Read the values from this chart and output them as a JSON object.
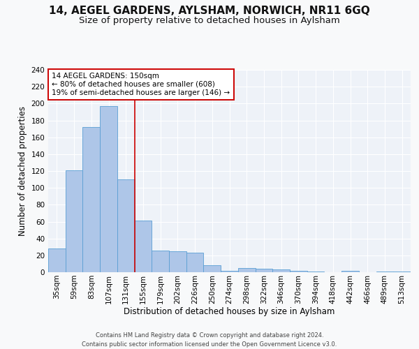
{
  "title": "14, AEGEL GARDENS, AYLSHAM, NORWICH, NR11 6GQ",
  "subtitle": "Size of property relative to detached houses in Aylsham",
  "xlabel": "Distribution of detached houses by size in Aylsham",
  "ylabel": "Number of detached properties",
  "bin_labels": [
    "35sqm",
    "59sqm",
    "83sqm",
    "107sqm",
    "131sqm",
    "155sqm",
    "179sqm",
    "202sqm",
    "226sqm",
    "250sqm",
    "274sqm",
    "298sqm",
    "322sqm",
    "346sqm",
    "370sqm",
    "394sqm",
    "418sqm",
    "442sqm",
    "466sqm",
    "489sqm",
    "513sqm"
  ],
  "bar_heights": [
    28,
    121,
    172,
    197,
    110,
    61,
    26,
    25,
    23,
    8,
    2,
    5,
    4,
    3,
    2,
    1,
    0,
    2,
    0,
    1,
    1
  ],
  "bar_color": "#aec6e8",
  "bar_edge_color": "#5a9fd4",
  "vline_x": 4.5,
  "vline_color": "#cc0000",
  "annotation_text": "14 AEGEL GARDENS: 150sqm\n← 80% of detached houses are smaller (608)\n19% of semi-detached houses are larger (146) →",
  "annotation_box_color": "#ffffff",
  "annotation_box_edge": "#cc0000",
  "footer_line1": "Contains HM Land Registry data © Crown copyright and database right 2024.",
  "footer_line2": "Contains public sector information licensed under the Open Government Licence v3.0.",
  "ylim": [
    0,
    240
  ],
  "yticks": [
    0,
    20,
    40,
    60,
    80,
    100,
    120,
    140,
    160,
    180,
    200,
    220,
    240
  ],
  "bg_color": "#eef2f8",
  "grid_color": "#ffffff",
  "fig_bg_color": "#f8f9fa",
  "title_fontsize": 11,
  "subtitle_fontsize": 9.5,
  "tick_fontsize": 7.5,
  "ylabel_fontsize": 8.5,
  "xlabel_fontsize": 8.5,
  "annotation_fontsize": 7.5,
  "footer_fontsize": 6.0
}
